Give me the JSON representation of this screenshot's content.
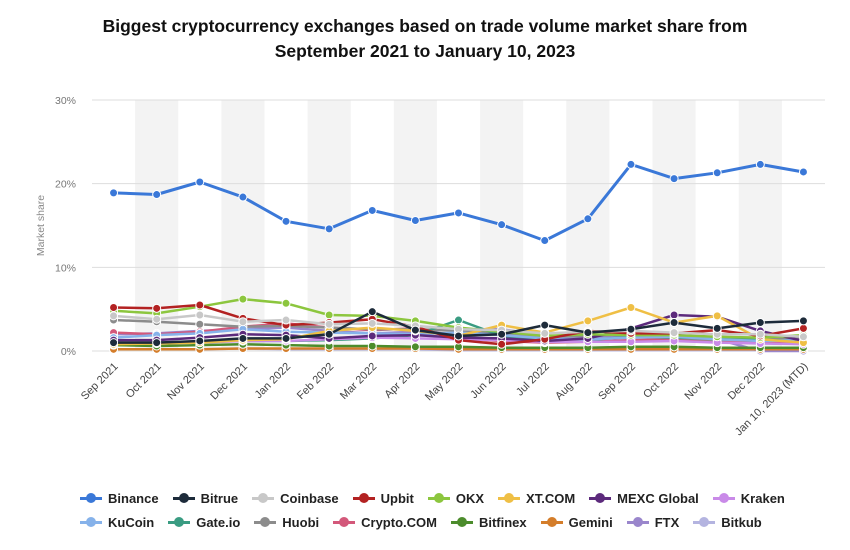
{
  "title_lines": [
    "Biggest cryptocurrency exchanges based on trade volume market share from",
    "September 2021 to January 10, 2023"
  ],
  "chart_data": {
    "type": "line",
    "title": "Biggest cryptocurrency exchanges based on trade volume market share from September 2021 to January 10, 2023",
    "xlabel": "",
    "ylabel": "Market share",
    "ylim": [
      0,
      30
    ],
    "yticks": [
      0,
      10,
      20,
      30
    ],
    "ytick_labels": [
      "0%",
      "10%",
      "20%",
      "30%"
    ],
    "grid": true,
    "legend_position": "bottom",
    "categories": [
      "Sep 2021",
      "Oct 2021",
      "Nov 2021",
      "Dec 2021",
      "Jan 2022",
      "Feb 2022",
      "Mar 2022",
      "Apr 2022",
      "May 2022",
      "Jun 2022",
      "Jul 2022",
      "Aug 2022",
      "Sep 2022",
      "Oct 2022",
      "Nov 2022",
      "Dec 2022",
      "Jan 10, 2023 (MTD)"
    ],
    "series": [
      {
        "name": "Binance",
        "color": "#3a78d8",
        "values": [
          18.9,
          18.7,
          20.2,
          18.4,
          15.5,
          14.6,
          16.8,
          15.6,
          16.5,
          15.1,
          13.2,
          15.8,
          22.3,
          20.6,
          21.3,
          22.3,
          21.4
        ]
      },
      {
        "name": "Bitrue",
        "color": "#1d2b3a",
        "values": [
          1.0,
          1.0,
          1.2,
          1.5,
          1.5,
          2.0,
          4.7,
          2.5,
          1.8,
          2.0,
          3.1,
          2.2,
          2.6,
          3.4,
          2.7,
          3.4,
          3.6
        ]
      },
      {
        "name": "Coinbase",
        "color": "#c8c8c8",
        "values": [
          4.2,
          3.8,
          4.3,
          3.5,
          3.7,
          3.2,
          3.3,
          3.0,
          2.6,
          2.5,
          2.1,
          2.3,
          2.4,
          2.2,
          2.0,
          2.0,
          1.7
        ]
      },
      {
        "name": "Upbit",
        "color": "#b32222",
        "values": [
          5.2,
          5.1,
          5.5,
          3.9,
          3.1,
          3.4,
          3.8,
          2.9,
          1.3,
          0.8,
          1.4,
          2.4,
          2.1,
          2.1,
          2.5,
          1.8,
          2.7
        ]
      },
      {
        "name": "OKX",
        "color": "#8cc63e",
        "values": [
          4.8,
          4.5,
          5.3,
          6.2,
          5.7,
          4.3,
          4.2,
          3.6,
          2.8,
          2.3,
          1.8,
          2.0,
          1.9,
          1.9,
          1.7,
          1.6,
          1.9
        ]
      },
      {
        "name": "XT.COM",
        "color": "#efbf45",
        "values": [
          0.8,
          0.9,
          1.0,
          1.3,
          1.4,
          2.4,
          2.8,
          2.4,
          1.8,
          3.1,
          2.2,
          3.6,
          5.2,
          3.4,
          4.2,
          1.4,
          1.0
        ]
      },
      {
        "name": "MEXC Global",
        "color": "#5c2a7c",
        "values": [
          1.3,
          1.3,
          1.6,
          2.0,
          1.9,
          1.5,
          1.8,
          1.9,
          1.6,
          1.5,
          1.2,
          1.5,
          2.7,
          4.3,
          4.1,
          2.4,
          1.2
        ]
      },
      {
        "name": "Kraken",
        "color": "#c98ae8",
        "values": [
          1.0,
          0.9,
          1.0,
          1.2,
          1.2,
          1.4,
          1.6,
          1.5,
          1.4,
          1.3,
          1.1,
          1.1,
          1.1,
          1.2,
          1.0,
          0.9,
          0.8
        ]
      },
      {
        "name": "KuCoin",
        "color": "#86b2ea",
        "values": [
          1.6,
          1.9,
          2.1,
          2.6,
          2.3,
          2.2,
          2.1,
          2.0,
          2.2,
          1.9,
          1.5,
          1.4,
          1.6,
          1.7,
          1.4,
          1.2,
          1.3
        ]
      },
      {
        "name": "Gate.io",
        "color": "#3a9c82",
        "values": [
          0.9,
          1.0,
          1.1,
          1.2,
          1.2,
          1.3,
          1.5,
          1.9,
          3.7,
          1.8,
          1.2,
          1.3,
          1.7,
          1.6,
          1.5,
          1.3,
          1.2
        ]
      },
      {
        "name": "Huobi",
        "color": "#8c8c8c",
        "values": [
          3.7,
          3.5,
          3.2,
          2.9,
          3.0,
          2.8,
          2.6,
          2.6,
          2.4,
          2.1,
          1.7,
          1.8,
          2.0,
          1.6,
          1.3,
          1.4,
          1.5
        ]
      },
      {
        "name": "Crypto.COM",
        "color": "#d3587a",
        "values": [
          2.2,
          2.0,
          2.3,
          2.9,
          3.3,
          2.8,
          2.5,
          2.7,
          1.5,
          1.2,
          1.0,
          1.1,
          1.3,
          1.4,
          1.2,
          1.1,
          0.9
        ]
      },
      {
        "name": "Bitfinex",
        "color": "#4c8c2c",
        "values": [
          0.7,
          0.6,
          0.7,
          0.8,
          0.7,
          0.6,
          0.6,
          0.5,
          0.5,
          0.4,
          0.4,
          0.4,
          0.5,
          0.5,
          0.4,
          0.4,
          0.4
        ]
      },
      {
        "name": "Gemini",
        "color": "#d47d2a",
        "values": [
          0.2,
          0.2,
          0.2,
          0.3,
          0.3,
          0.3,
          0.3,
          0.3,
          0.2,
          0.2,
          0.2,
          0.2,
          0.2,
          0.2,
          0.2,
          0.2,
          0.2
        ]
      },
      {
        "name": "FTX",
        "color": "#9a86cc",
        "values": [
          2.0,
          2.1,
          2.4,
          2.6,
          2.8,
          2.4,
          2.1,
          2.3,
          2.6,
          2.6,
          1.8,
          1.5,
          1.8,
          2.0,
          1.4,
          0.0,
          0.0
        ]
      },
      {
        "name": "Bitkub",
        "color": "#b4b4e0",
        "values": [
          0.2,
          0.2,
          0.2,
          0.3,
          0.2,
          0.2,
          0.2,
          0.2,
          0.1,
          0.1,
          0.1,
          0.1,
          0.1,
          0.1,
          0.1,
          0.1,
          0.1
        ]
      }
    ]
  }
}
